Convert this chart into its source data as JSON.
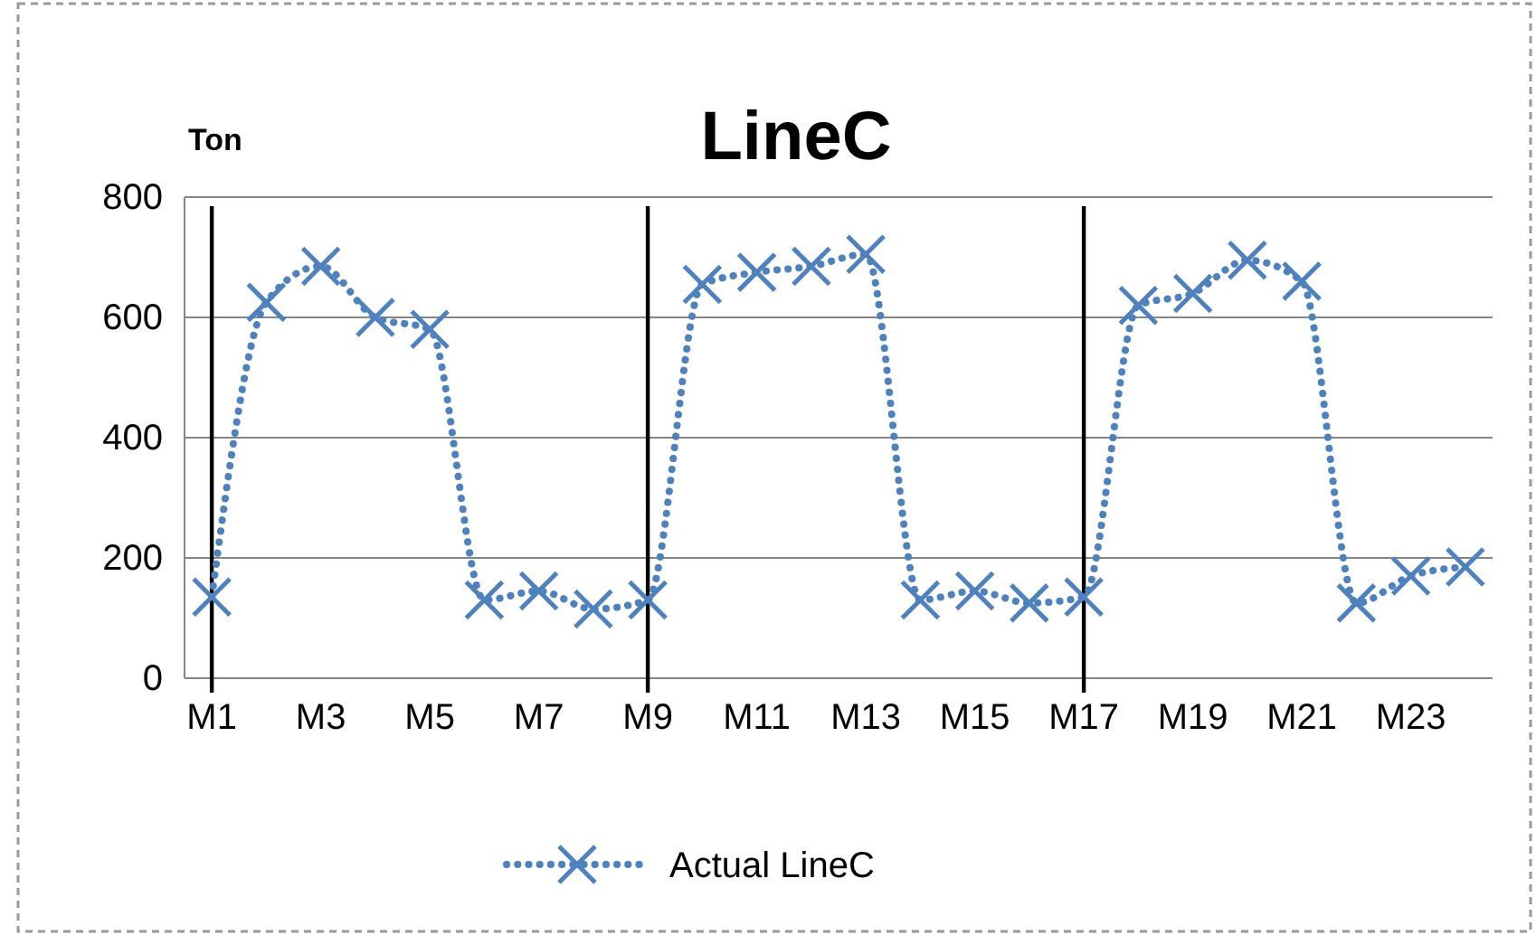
{
  "chart_data": {
    "type": "line",
    "title": "LineC",
    "ylabel": "Ton",
    "categories": [
      "M1",
      null,
      "M3",
      null,
      "M5",
      null,
      "M7",
      null,
      "M9",
      null,
      "M11",
      null,
      "M13",
      null,
      "M15",
      null,
      "M17",
      null,
      "M19",
      null,
      "M21",
      null,
      "M23",
      null
    ],
    "series": [
      {
        "name": "Actual LineC",
        "color": "#4f81bd",
        "values": [
          135,
          625,
          685,
          600,
          580,
          130,
          145,
          115,
          130,
          655,
          675,
          685,
          705,
          130,
          145,
          125,
          135,
          620,
          640,
          695,
          660,
          125,
          170,
          185
        ]
      }
    ],
    "ylim": [
      0,
      800
    ],
    "yticks": [
      0,
      200,
      400,
      600,
      800
    ],
    "grid": "y",
    "ref_lines": [
      {
        "axis": "x",
        "value": "M1",
        "color": "#000000"
      },
      {
        "axis": "x",
        "value": "M9",
        "color": "#000000"
      },
      {
        "axis": "x",
        "value": "M17",
        "color": "#000000"
      }
    ],
    "legend": "bottom",
    "marker": "cross",
    "line_style": "dotted"
  }
}
